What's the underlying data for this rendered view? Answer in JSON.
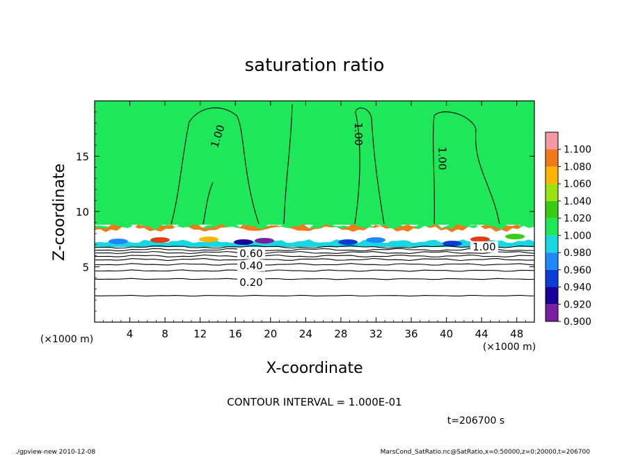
{
  "chart_data": {
    "type": "heatmap",
    "title": "saturation ratio",
    "xlabel": "X-coordinate",
    "ylabel": "Z-coordinate",
    "x_unit": "(×1000 m)",
    "y_unit": "(×1000 m)",
    "xlim": [
      0,
      50
    ],
    "ylim": [
      0,
      20
    ],
    "x_ticks": [
      {
        "value": 4,
        "label": "4"
      },
      {
        "value": 8,
        "label": "8"
      },
      {
        "value": 12,
        "label": "12"
      },
      {
        "value": 16,
        "label": "16"
      },
      {
        "value": 20,
        "label": "20"
      },
      {
        "value": 24,
        "label": "24"
      },
      {
        "value": 28,
        "label": "28"
      },
      {
        "value": 32,
        "label": "32"
      },
      {
        "value": 36,
        "label": "36"
      },
      {
        "value": 40,
        "label": "40"
      },
      {
        "value": 44,
        "label": "44"
      },
      {
        "value": 48,
        "label": "48"
      }
    ],
    "y_ticks": [
      {
        "value": 5,
        "label": "5"
      },
      {
        "value": 10,
        "label": "10"
      },
      {
        "value": 15,
        "label": "15"
      }
    ],
    "colorbar": {
      "levels": [
        {
          "label": "0.900",
          "color": "#7a1fa0"
        },
        {
          "label": "0.920",
          "color": "#1a0099"
        },
        {
          "label": "0.940",
          "color": "#0a3cd6"
        },
        {
          "label": "0.960",
          "color": "#1e88ff"
        },
        {
          "label": "0.980",
          "color": "#19d6e0"
        },
        {
          "label": "1.000",
          "color": "#1ee85a"
        },
        {
          "label": "1.020",
          "color": "#38cc14"
        },
        {
          "label": "1.040",
          "color": "#9be010"
        },
        {
          "label": "1.060",
          "color": "#ffb400"
        },
        {
          "label": "1.080",
          "color": "#f07a1a"
        },
        {
          "label": "1.100",
          "color": "#e23b16"
        },
        {
          "label": "",
          "color": "#f59aa0"
        }
      ]
    },
    "contour_labels": [
      {
        "text": "1.00",
        "x": 14.0,
        "y": 16.8,
        "rotate": -72
      },
      {
        "text": "1.00",
        "x": 30.0,
        "y": 17.0,
        "rotate": 90
      },
      {
        "text": "1.00",
        "x": 39.5,
        "y": 14.8,
        "rotate": 90
      },
      {
        "text": "1.00",
        "x": 44.3,
        "y": 6.8,
        "rotate": 0
      },
      {
        "text": "0.60",
        "x": 17.8,
        "y": 6.2,
        "rotate": 0
      },
      {
        "text": "0.40",
        "x": 17.8,
        "y": 5.1,
        "rotate": 0
      },
      {
        "text": "0.20",
        "x": 17.8,
        "y": 3.6,
        "rotate": 0
      }
    ],
    "contour_interval": "CONTOUR INTERVAL = 1.000E-01",
    "time": "t=206700 s",
    "footer_left": "./gpview-new  2010-12-08",
    "footer_right": "MarsCond_SatRatio.nc@SatRatio,x=0:50000,z=0:20000,t=206700"
  }
}
